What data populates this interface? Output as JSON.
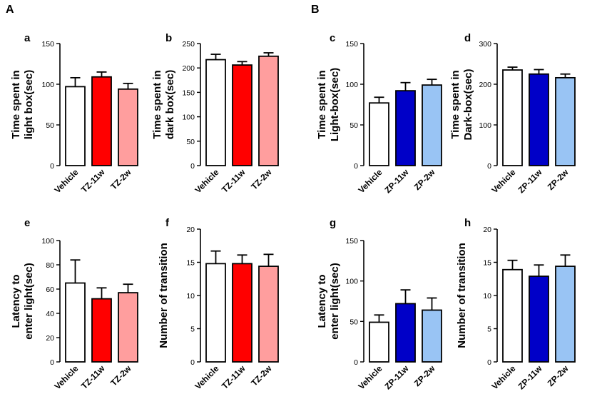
{
  "sections": [
    {
      "label": "A"
    },
    {
      "label": "B"
    }
  ],
  "colors": {
    "vehicle": "#ffffff",
    "tz_11w": "#ff0000",
    "tz_2w": "#ff9e9e",
    "zp_11w": "#0000c8",
    "zp_2w": "#99c4f4",
    "stroke": "#000000"
  },
  "chart_data": [
    {
      "panel": "a",
      "type": "bar",
      "ylabel": [
        "Time spent  in",
        "light box(sec)"
      ],
      "ylim": [
        0,
        150
      ],
      "yticks": [
        "0",
        "50",
        "100",
        "150"
      ],
      "categories": [
        "Vehicle",
        "TZ-11w",
        "TZ-2w"
      ],
      "values": [
        97,
        109,
        94
      ],
      "errors": [
        11,
        6,
        7
      ],
      "colors": [
        "#ffffff",
        "#ff0000",
        "#ff9e9e"
      ]
    },
    {
      "panel": "b",
      "type": "bar",
      "ylabel": [
        "Time spent in",
        "dark box(sec)"
      ],
      "ylim": [
        0,
        250
      ],
      "yticks": [
        "0",
        "50",
        "100",
        "150",
        "200",
        "250"
      ],
      "categories": [
        "Vehicle",
        "TZ-11w",
        "TZ-2w"
      ],
      "values": [
        217,
        206,
        224
      ],
      "errors": [
        11,
        7,
        7
      ],
      "colors": [
        "#ffffff",
        "#ff0000",
        "#ff9e9e"
      ]
    },
    {
      "panel": "c",
      "type": "bar",
      "ylabel": [
        "Time spent in",
        "Light-box(sec)"
      ],
      "ylim": [
        0,
        150
      ],
      "yticks": [
        "0",
        "50",
        "100",
        "150"
      ],
      "categories": [
        "Vehicle",
        "ZP-11w",
        "ZP-2w"
      ],
      "values": [
        77,
        92,
        99
      ],
      "errors": [
        7,
        10,
        7
      ],
      "colors": [
        "#ffffff",
        "#0000c8",
        "#99c4f4"
      ]
    },
    {
      "panel": "d",
      "type": "bar",
      "ylabel": [
        "Time spent in",
        "Dark-box(sec)"
      ],
      "ylim": [
        0,
        300
      ],
      "yticks": [
        "0",
        "100",
        "200",
        "300"
      ],
      "categories": [
        "Vehicle",
        "ZP-11w",
        "ZP-2w"
      ],
      "values": [
        235,
        225,
        216
      ],
      "errors": [
        7,
        11,
        9
      ],
      "colors": [
        "#ffffff",
        "#0000c8",
        "#99c4f4"
      ]
    },
    {
      "panel": "e",
      "type": "bar",
      "ylabel": [
        "Latency to",
        "enter light(sec)"
      ],
      "ylim": [
        0,
        100
      ],
      "yticks": [
        "0",
        "20",
        "40",
        "60",
        "80",
        "100"
      ],
      "categories": [
        "Vehicle",
        "TZ-11w",
        "TZ-2w"
      ],
      "values": [
        65,
        52,
        57
      ],
      "errors": [
        19,
        9,
        7
      ],
      "colors": [
        "#ffffff",
        "#ff0000",
        "#ff9e9e"
      ]
    },
    {
      "panel": "f",
      "type": "bar",
      "ylabel": [
        "Number of transition"
      ],
      "ylim": [
        0,
        20
      ],
      "yticks": [
        "0",
        "5",
        "10",
        "15",
        "20"
      ],
      "categories": [
        "Vehicle",
        "TZ-11w",
        "TZ-2w"
      ],
      "values": [
        14.8,
        14.8,
        14.4
      ],
      "errors": [
        1.9,
        1.3,
        1.8
      ],
      "colors": [
        "#ffffff",
        "#ff0000",
        "#ff9e9e"
      ]
    },
    {
      "panel": "g",
      "type": "bar",
      "ylabel": [
        "Latency to",
        "enter light(sec)"
      ],
      "ylim": [
        0,
        150
      ],
      "yticks": [
        "0",
        "50",
        "100",
        "150"
      ],
      "categories": [
        "Vehicle",
        "ZP-11w",
        "ZP-2w"
      ],
      "values": [
        49,
        72,
        64
      ],
      "errors": [
        9,
        17,
        15
      ],
      "colors": [
        "#ffffff",
        "#0000c8",
        "#99c4f4"
      ]
    },
    {
      "panel": "h",
      "type": "bar",
      "ylabel": [
        "Number of transition"
      ],
      "ylim": [
        0,
        20
      ],
      "yticks": [
        "0",
        "5",
        "10",
        "15",
        "20"
      ],
      "categories": [
        "Vehicle",
        "ZP-11w",
        "ZP-2w"
      ],
      "values": [
        13.9,
        12.9,
        14.4
      ],
      "errors": [
        1.4,
        1.7,
        1.7
      ],
      "colors": [
        "#ffffff",
        "#0000c8",
        "#99c4f4"
      ]
    }
  ]
}
